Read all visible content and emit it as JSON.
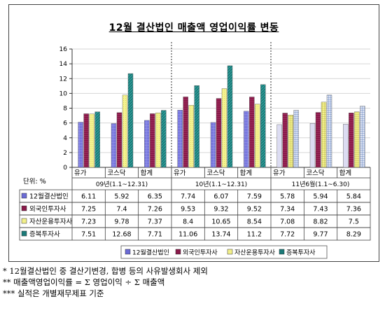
{
  "title": "12월 결산법인 매출액 영업이익률 변동",
  "unit_label": "단위: %",
  "colors": {
    "12월결산법인": "#6b6bd6",
    "외국인투자사": "#8a1a4a",
    "자산운용투자사": "#f2f08a",
    "증복투자사": "#1a7a78"
  },
  "chart_data": {
    "type": "bar",
    "ylim": [
      0,
      16
    ],
    "yticks": [
      0,
      2,
      4,
      6,
      8,
      10,
      12,
      14,
      16
    ],
    "grid": true,
    "legend_placement": "bottom",
    "groups": [
      {
        "name": "09년(1.1~12.31)",
        "categories": [
          "유가",
          "코스닥",
          "합계"
        ]
      },
      {
        "name": "10년(1.1~12.31)",
        "categories": [
          "유가",
          "코스닥",
          "합계"
        ]
      },
      {
        "name": "11년6월(1.1~6.30)",
        "categories": [
          "유가",
          "코스닥",
          "합계"
        ]
      }
    ],
    "series": [
      {
        "name": "12월결산법인",
        "values": [
          6.11,
          5.92,
          6.35,
          7.74,
          6.07,
          7.59,
          5.78,
          5.94,
          5.84
        ]
      },
      {
        "name": "외국인투자사",
        "values": [
          7.25,
          7.4,
          7.26,
          9.53,
          9.32,
          9.52,
          7.34,
          7.43,
          7.36
        ]
      },
      {
        "name": "자산운용투자사",
        "values": [
          7.23,
          9.78,
          7.37,
          8.4,
          10.65,
          8.54,
          7.08,
          8.82,
          7.5
        ]
      },
      {
        "name": "증복투자사",
        "values": [
          7.51,
          12.68,
          7.71,
          11.06,
          13.74,
          11.2,
          7.72,
          9.77,
          8.29
        ]
      }
    ],
    "table_values": [
      [
        "6.11",
        "5.92",
        "6.35",
        "7.74",
        "6.07",
        "7.59",
        "5.78",
        "5.94",
        "5.84"
      ],
      [
        "7.25",
        "7.4",
        "7.26",
        "9.53",
        "9.32",
        "9.52",
        "7.34",
        "7.43",
        "7.36"
      ],
      [
        "7.23",
        "9.78",
        "7.37",
        "8.4",
        "10.65",
        "8.54",
        "7.08",
        "8.82",
        "7.5"
      ],
      [
        "7.51",
        "12.68",
        "7.71",
        "11.06",
        "13.74",
        "11.2",
        "7.72",
        "9.77",
        "8.29"
      ]
    ]
  },
  "footnotes": [
    "* 12월결산법인 중 결산기변경, 합병 등의 사유발생회사 제외",
    "** 매출액영업이익률 = Σ 영업이익 ÷ Σ 매출액",
    "*** 실적은 개별재무제표 기준"
  ]
}
